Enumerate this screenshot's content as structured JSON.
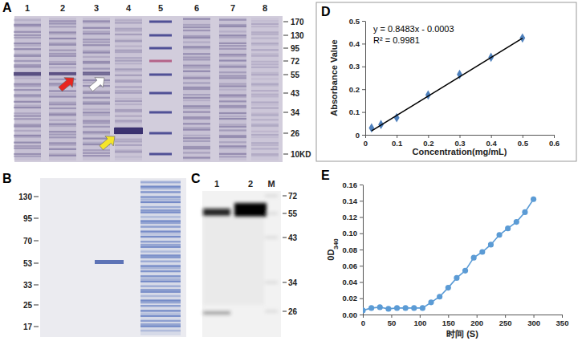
{
  "chart_data": [
    {
      "panel_label": "D",
      "type": "scatter",
      "x_label": "Concentration(mg/mL)",
      "y_label": "Absorbance Value",
      "annotations": [
        "y = 0.8483x - 0.0003",
        "R² = 0.9981"
      ],
      "series": [
        {
          "type": "scatter",
          "marker": "diamond",
          "color": "#4f81bd",
          "x": [
            0.02,
            0.05,
            0.1,
            0.2,
            0.3,
            0.4,
            0.5
          ],
          "values": [
            0.03,
            0.045,
            0.075,
            0.175,
            0.265,
            0.34,
            0.425
          ]
        },
        {
          "type": "line",
          "line_style": "solid",
          "color": "#000000",
          "x": [
            0.02,
            0.5
          ],
          "values": [
            0.017,
            0.424
          ]
        }
      ],
      "xlim": [
        0,
        0.6
      ],
      "xticks": [
        0,
        0.1,
        0.2,
        0.3,
        0.4,
        0.5,
        0.6
      ],
      "ylim": [
        0,
        0.5
      ],
      "yticks": [
        0,
        0.1,
        0.2,
        0.3,
        0.4,
        0.5
      ],
      "grid": false
    },
    {
      "panel_label": "E",
      "type": "line",
      "x_label": "时间 (S)",
      "y_label": "0D340",
      "series": [
        {
          "type": "line",
          "marker": "circle",
          "line_style": "solid",
          "color": "#5b9bd5",
          "x": [
            0,
            15,
            30,
            45,
            60,
            75,
            90,
            105,
            120,
            135,
            150,
            165,
            180,
            195,
            210,
            225,
            240,
            255,
            270,
            285,
            300
          ],
          "values": [
            0.005,
            0.008,
            0.009,
            0.007,
            0.008,
            0.008,
            0.008,
            0.008,
            0.015,
            0.022,
            0.033,
            0.045,
            0.054,
            0.07,
            0.077,
            0.086,
            0.098,
            0.106,
            0.114,
            0.126,
            0.142
          ]
        }
      ],
      "xlim": [
        0,
        350
      ],
      "xticks": [
        0,
        50,
        100,
        150,
        200,
        250,
        300,
        350
      ],
      "ylim": [
        0,
        0.16
      ],
      "yticks": [
        {
          "value": 0,
          "label": "0.00"
        },
        {
          "value": 0.02,
          "label": "0.02"
        },
        {
          "value": 0.04,
          "label": "0.04"
        },
        {
          "value": 0.06,
          "label": "0.06"
        },
        {
          "value": 0.08,
          "label": "0.08"
        },
        {
          "value": 0.1,
          "label": "0.10"
        },
        {
          "value": 0.12,
          "label": "0.12"
        },
        {
          "value": 0.14,
          "label": "0.14"
        },
        {
          "value": 0.16,
          "label": "0.16"
        }
      ],
      "grid": false
    }
  ],
  "gels": [
    {
      "panel_label": "A",
      "lanes": [
        "1",
        "2",
        "3",
        "4",
        "5",
        "6",
        "7",
        "8"
      ],
      "markers": [
        170,
        130,
        95,
        72,
        55,
        43,
        34,
        26,
        {
          "value": 10,
          "label": "10KD"
        }
      ]
    },
    {
      "panel_label": "B",
      "markers": [
        130,
        95,
        70,
        53,
        33,
        25,
        17
      ]
    },
    {
      "panel_label": "C",
      "lanes": [
        "1",
        "2",
        "M"
      ],
      "markers": [
        72,
        55,
        43,
        34,
        26
      ]
    }
  ]
}
